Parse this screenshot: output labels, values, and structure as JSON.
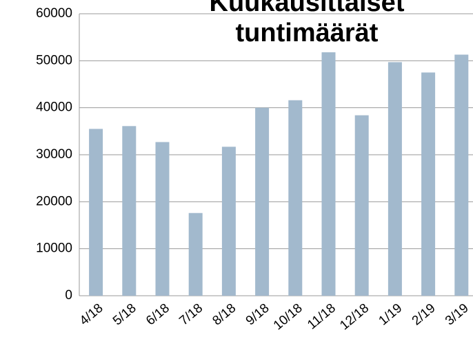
{
  "chart_data": {
    "type": "bar",
    "title": "Kuukausittaiset tuntimäärät",
    "categories": [
      "4/18",
      "5/18",
      "6/18",
      "7/18",
      "8/18",
      "9/18",
      "10/18",
      "11/18",
      "12/18",
      "1/19",
      "2/19",
      "3/19"
    ],
    "values": [
      35500,
      36100,
      32700,
      17600,
      31700,
      40000,
      41600,
      51800,
      38400,
      49700,
      47500,
      51300
    ],
    "color": "#a2b9cd",
    "ylim": [
      0,
      60000
    ],
    "yticks": [
      0,
      10000,
      20000,
      30000,
      40000,
      50000,
      60000
    ],
    "grid": true
  }
}
